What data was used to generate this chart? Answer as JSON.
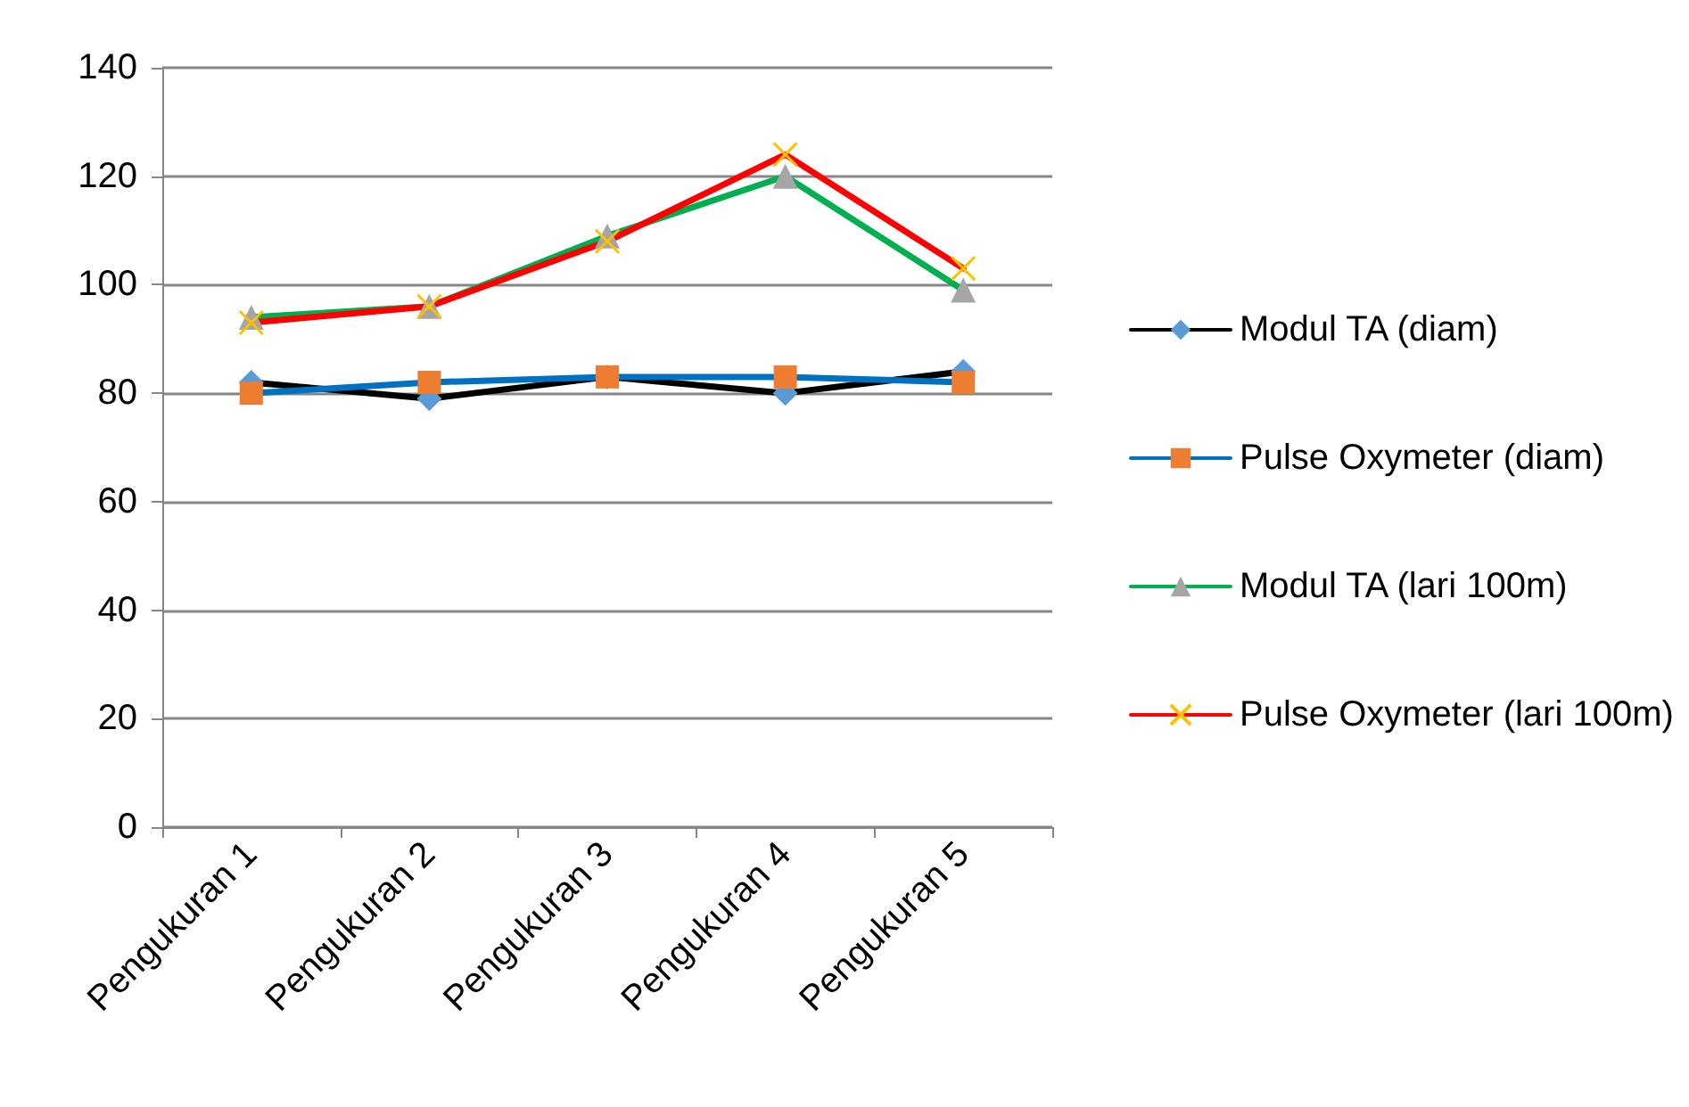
{
  "chart_data": {
    "type": "line",
    "categories": [
      "Pengukuran 1",
      "Pengukuran 2",
      "Pengukuran 3",
      "Pengukuran 4",
      "Pengukuran 5"
    ],
    "series": [
      {
        "name": "Modul TA (diam)",
        "color": "#000000",
        "marker": "diamond",
        "colors": [
          "#5b9bd5",
          "#5b9bd5",
          "#5b9bd5",
          "#5b9bd5",
          "#5b9bd5"
        ],
        "values": [
          82,
          79,
          83,
          80,
          84
        ]
      },
      {
        "name": "Pulse Oxymeter (diam)",
        "color": "#0070c0",
        "marker": "square",
        "colors": [
          "#ed7d31",
          "#ed7d31",
          "#ed7d31",
          "#ed7d31",
          "#ed7d31"
        ],
        "values": [
          80,
          82,
          83,
          83,
          82
        ]
      },
      {
        "name": "Modul TA (lari 100m)",
        "color": "#00b050",
        "marker": "triangle",
        "colors": [
          "#a5a5a5",
          "#a5a5a5",
          "#a5a5a5",
          "#a5a5a5",
          "#a5a5a5"
        ],
        "values": [
          94,
          96,
          109,
          120,
          99
        ]
      },
      {
        "name": "Pulse Oxymeter (lari 100m)",
        "color": "#ff0000",
        "marker": "cross",
        "colors": [
          "#ffc000",
          "#ffc000",
          "#ffc000",
          "#ffc000",
          "#ffc000"
        ],
        "values": [
          93,
          96,
          108,
          124,
          103
        ]
      }
    ],
    "ylim": [
      0,
      140
    ],
    "yticks": [
      0,
      20,
      40,
      60,
      80,
      100,
      120,
      140
    ],
    "grid": "y",
    "legend": "right",
    "line_style": "solid"
  }
}
